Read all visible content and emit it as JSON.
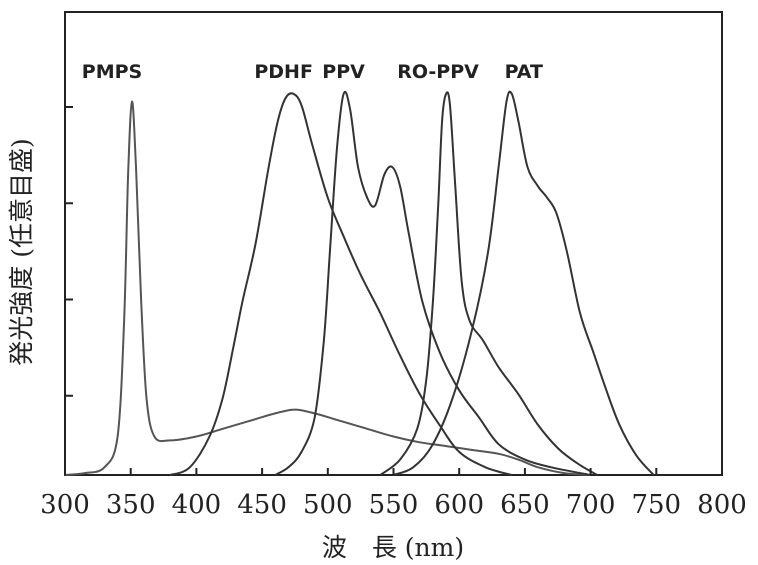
{
  "chart_data": {
    "type": "line",
    "title": "",
    "xlabel": "波　長 (nm)",
    "ylabel": "発光強度 (任意目盛)",
    "xlim": [
      300,
      800
    ],
    "ylim": [
      0,
      1.0
    ],
    "xticks": [
      "300",
      "350",
      "400",
      "450",
      "500",
      "550",
      "600",
      "650",
      "700",
      "750",
      "800"
    ],
    "grid": false,
    "legend": "none",
    "series": [
      {
        "name": "PMPS",
        "color": "#555555",
        "points": [
          [
            300,
            0
          ],
          [
            315,
            0.005
          ],
          [
            330,
            0.02
          ],
          [
            340,
            0.1
          ],
          [
            345,
            0.4
          ],
          [
            348,
            0.78
          ],
          [
            351,
            0.97
          ],
          [
            354,
            0.8
          ],
          [
            358,
            0.45
          ],
          [
            362,
            0.2
          ],
          [
            368,
            0.1
          ],
          [
            380,
            0.09
          ],
          [
            400,
            0.1
          ],
          [
            420,
            0.12
          ],
          [
            440,
            0.14
          ],
          [
            460,
            0.16
          ],
          [
            475,
            0.17
          ],
          [
            490,
            0.16
          ],
          [
            510,
            0.14
          ],
          [
            530,
            0.12
          ],
          [
            550,
            0.1
          ],
          [
            570,
            0.085
          ],
          [
            590,
            0.075
          ],
          [
            610,
            0.065
          ],
          [
            630,
            0.055
          ],
          [
            645,
            0.04
          ],
          [
            660,
            0.02
          ],
          [
            680,
            0.005
          ],
          [
            700,
            0
          ]
        ]
      },
      {
        "name": "PDHF",
        "color": "#333333",
        "points": [
          [
            380,
            0
          ],
          [
            395,
            0.02
          ],
          [
            410,
            0.1
          ],
          [
            420,
            0.2
          ],
          [
            428,
            0.33
          ],
          [
            435,
            0.45
          ],
          [
            445,
            0.6
          ],
          [
            455,
            0.8
          ],
          [
            462,
            0.92
          ],
          [
            468,
            0.98
          ],
          [
            474,
            0.99
          ],
          [
            480,
            0.96
          ],
          [
            488,
            0.86
          ],
          [
            500,
            0.72
          ],
          [
            512,
            0.62
          ],
          [
            525,
            0.52
          ],
          [
            540,
            0.42
          ],
          [
            555,
            0.31
          ],
          [
            570,
            0.21
          ],
          [
            585,
            0.13
          ],
          [
            600,
            0.06
          ],
          [
            620,
            0.02
          ],
          [
            640,
            0
          ]
        ]
      },
      {
        "name": "PPV",
        "color": "#333333",
        "points": [
          [
            460,
            0
          ],
          [
            470,
            0.02
          ],
          [
            480,
            0.06
          ],
          [
            490,
            0.15
          ],
          [
            497,
            0.35
          ],
          [
            502,
            0.6
          ],
          [
            507,
            0.85
          ],
          [
            512,
            0.99
          ],
          [
            517,
            0.95
          ],
          [
            523,
            0.8
          ],
          [
            530,
            0.72
          ],
          [
            536,
            0.7
          ],
          [
            543,
            0.78
          ],
          [
            549,
            0.8
          ],
          [
            555,
            0.75
          ],
          [
            562,
            0.62
          ],
          [
            572,
            0.45
          ],
          [
            585,
            0.32
          ],
          [
            600,
            0.22
          ],
          [
            615,
            0.15
          ],
          [
            630,
            0.08
          ],
          [
            650,
            0.04
          ],
          [
            670,
            0.02
          ],
          [
            700,
            0
          ]
        ]
      },
      {
        "name": "RO-PPV",
        "color": "#333333",
        "points": [
          [
            540,
            0
          ],
          [
            555,
            0.04
          ],
          [
            568,
            0.12
          ],
          [
            575,
            0.25
          ],
          [
            580,
            0.45
          ],
          [
            584,
            0.7
          ],
          [
            587,
            0.92
          ],
          [
            590,
            0.99
          ],
          [
            593,
            0.96
          ],
          [
            597,
            0.75
          ],
          [
            602,
            0.5
          ],
          [
            608,
            0.4
          ],
          [
            618,
            0.35
          ],
          [
            630,
            0.28
          ],
          [
            645,
            0.21
          ],
          [
            660,
            0.13
          ],
          [
            675,
            0.07
          ],
          [
            690,
            0.03
          ],
          [
            705,
            0
          ]
        ]
      },
      {
        "name": "PAT",
        "color": "#333333",
        "points": [
          [
            550,
            0
          ],
          [
            565,
            0.02
          ],
          [
            580,
            0.08
          ],
          [
            595,
            0.2
          ],
          [
            610,
            0.38
          ],
          [
            622,
            0.58
          ],
          [
            630,
            0.8
          ],
          [
            636,
            0.97
          ],
          [
            640,
            0.99
          ],
          [
            645,
            0.92
          ],
          [
            652,
            0.8
          ],
          [
            660,
            0.75
          ],
          [
            667,
            0.72
          ],
          [
            674,
            0.68
          ],
          [
            682,
            0.58
          ],
          [
            692,
            0.42
          ],
          [
            702,
            0.32
          ],
          [
            712,
            0.22
          ],
          [
            722,
            0.13
          ],
          [
            735,
            0.05
          ],
          [
            748,
            0
          ]
        ]
      }
    ]
  }
}
